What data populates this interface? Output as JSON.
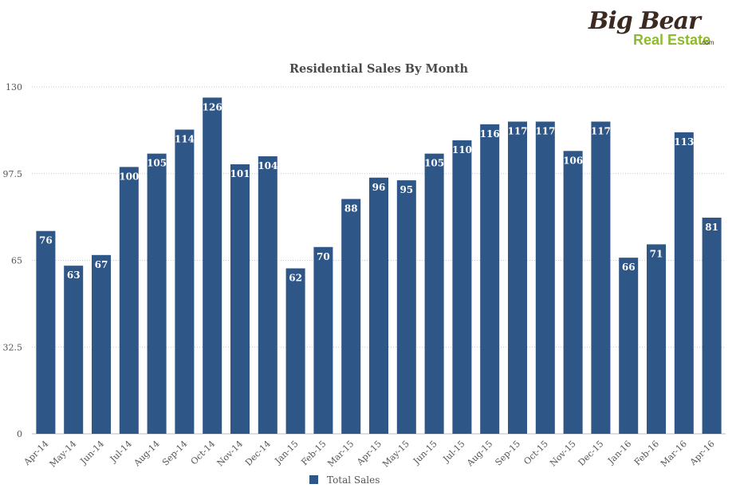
{
  "logo": {
    "line1": "Big Bear",
    "line2": "Real Estate",
    "suffix": ".com",
    "color_dark": "#3b2a22",
    "color_green": "#8dbb2c"
  },
  "chart_data": {
    "type": "bar",
    "title": "Residential Sales By Month",
    "xlabel": "",
    "ylabel": "",
    "ylim": [
      0,
      130
    ],
    "yticks": [
      "0",
      "32.5",
      "65",
      "97.5",
      "130"
    ],
    "ytick_values": [
      0,
      32.5,
      65,
      97.5,
      130
    ],
    "grid": true,
    "legend_position": "bottom",
    "bar_color": "#2e5686",
    "categories": [
      "Apr-14",
      "May-14",
      "Jun-14",
      "Jul-14",
      "Aug-14",
      "Sep-14",
      "Oct-14",
      "Nov-14",
      "Dec-14",
      "Jan-15",
      "Feb-15",
      "Mar-15",
      "Apr-15",
      "May-15",
      "Jun-15",
      "Jul-15",
      "Aug-15",
      "Sep-15",
      "Oct-15",
      "Nov-15",
      "Dec-15",
      "Jan-16",
      "Feb-16",
      "Mar-16",
      "Apr-16"
    ],
    "series": [
      {
        "name": "Total Sales",
        "values": [
          76,
          63,
          67,
          100,
          105,
          114,
          126,
          101,
          104,
          62,
          70,
          88,
          96,
          95,
          105,
          110,
          116,
          117,
          117,
          106,
          117,
          66,
          71,
          113,
          81
        ]
      }
    ]
  }
}
